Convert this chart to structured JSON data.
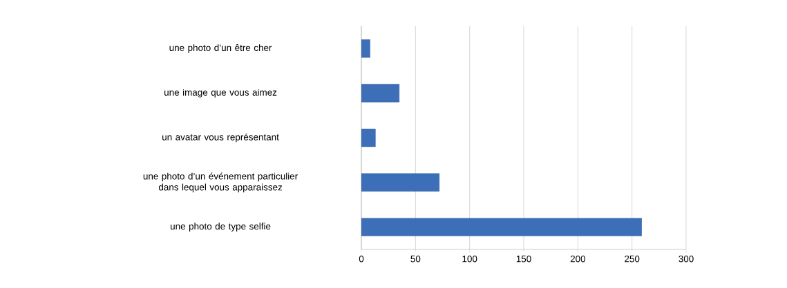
{
  "chart_data": {
    "type": "bar",
    "orientation": "horizontal",
    "categories": [
      "une photo d’un être cher",
      "une image que vous aimez",
      "un avatar vous représentant",
      "une photo d’un événement particulier dans lequel vous apparaissez",
      "une photo de type selfie"
    ],
    "values": [
      8,
      35,
      13,
      72,
      259
    ],
    "color": "#3c6fb8",
    "xlim": [
      0,
      300
    ],
    "xticks": [
      0,
      50,
      100,
      150,
      200,
      250,
      300
    ],
    "grid": "x"
  }
}
